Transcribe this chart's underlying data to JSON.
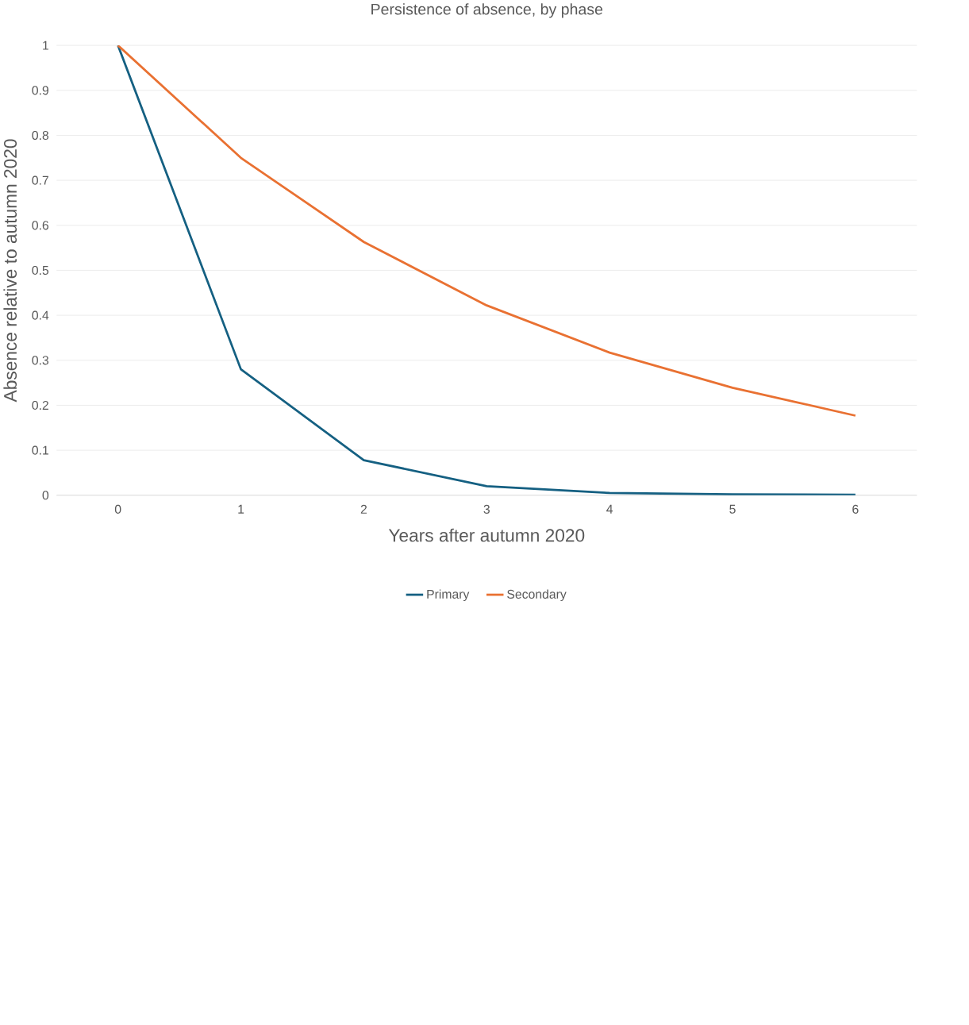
{
  "chart_data": {
    "type": "line",
    "title": "Persistence of absence, by phase",
    "xlabel": "Years after autumn 2020",
    "ylabel": "Absence relative to autumn 2020",
    "categories": [
      "0",
      "1",
      "2",
      "3",
      "4",
      "5",
      "6"
    ],
    "series": [
      {
        "name": "Primary",
        "color": "#156082",
        "values": [
          1,
          0.28,
          0.078,
          0.02,
          0.005,
          0.002,
          0.001
        ]
      },
      {
        "name": "Secondary",
        "color": "#e97132",
        "values": [
          1,
          0.75,
          0.563,
          0.422,
          0.317,
          0.239,
          0.177
        ]
      }
    ],
    "ylim": [
      0,
      1
    ],
    "yticks": [
      0,
      0.1,
      0.2,
      0.3,
      0.4,
      0.5,
      0.6,
      0.7,
      0.8,
      0.9,
      1
    ],
    "grid": "y",
    "legend": "bottom",
    "marker": "none",
    "line_style": "solid"
  }
}
